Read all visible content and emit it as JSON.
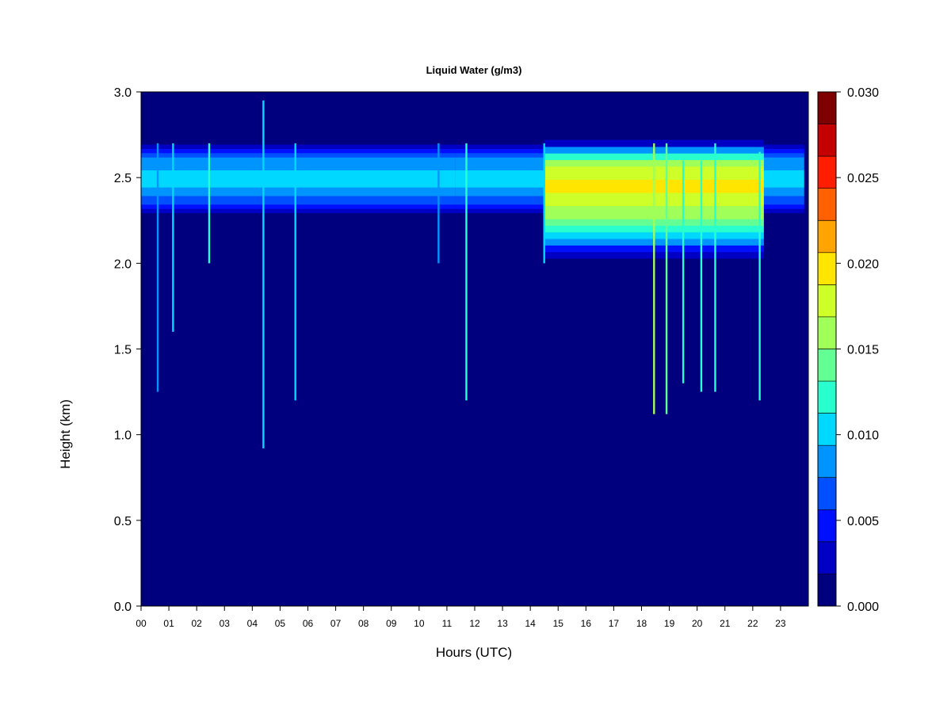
{
  "chart_data": {
    "type": "heatmap",
    "title": "Liquid Water (g/m3)",
    "xlabel": "Hours (UTC)",
    "ylabel": "Height (km)",
    "xlim": [
      0,
      24
    ],
    "ylim": [
      0.0,
      3.0
    ],
    "x_ticks": [
      "00",
      "01",
      "02",
      "03",
      "04",
      "05",
      "06",
      "07",
      "08",
      "09",
      "10",
      "11",
      "12",
      "13",
      "14",
      "15",
      "16",
      "17",
      "18",
      "19",
      "20",
      "21",
      "22",
      "23"
    ],
    "y_ticks": [
      "0.0",
      "0.5",
      "1.0",
      "1.5",
      "2.0",
      "2.5",
      "3.0"
    ],
    "grid": false,
    "colorbar": {
      "placement": "right",
      "range": [
        0.0,
        0.03
      ],
      "levels": 15,
      "tick_labels": [
        "0.000",
        "0.005",
        "0.010",
        "0.015",
        "0.020",
        "0.025",
        "0.030"
      ],
      "colors": [
        "#00007F",
        "#0000C4",
        "#0010FF",
        "#0050FF",
        "#0094FF",
        "#00D8FF",
        "#29FFCE",
        "#63FF94",
        "#A0FF58",
        "#CEFF29",
        "#FFE500",
        "#FFA400",
        "#FF6100",
        "#FF1D00",
        "#C40000",
        "#7F0000"
      ]
    },
    "background_value": 0.0,
    "cloud_layers": [
      {
        "label": "upper layer, continuous segment A",
        "hours": [
          0.0,
          11.3
        ],
        "base_km": 2.27,
        "top_km": 2.72,
        "peak_km": 2.5,
        "peak_value": 0.01
      },
      {
        "label": "upper layer, continuous segment B",
        "hours": [
          11.3,
          23.85
        ],
        "base_km": 2.27,
        "top_km": 2.72,
        "peak_km": 2.5,
        "peak_value": 0.01
      },
      {
        "label": "upper layer, thick core",
        "hours": [
          14.5,
          22.4
        ],
        "base_km": 2.03,
        "top_km": 2.72,
        "peak_km": 2.47,
        "peak_value": 0.019
      }
    ],
    "streaks": [
      {
        "hour": 0.6,
        "bottom_km": 1.25,
        "top_km": 2.7,
        "value": 0.008
      },
      {
        "hour": 1.15,
        "bottom_km": 1.6,
        "top_km": 2.7,
        "value": 0.011
      },
      {
        "hour": 2.45,
        "bottom_km": 2.0,
        "top_km": 2.7,
        "value": 0.012
      },
      {
        "hour": 4.4,
        "bottom_km": 0.92,
        "top_km": 2.95,
        "value": 0.011
      },
      {
        "hour": 5.55,
        "bottom_km": 1.2,
        "top_km": 2.7,
        "value": 0.01
      },
      {
        "hour": 10.7,
        "bottom_km": 2.0,
        "top_km": 2.7,
        "value": 0.009
      },
      {
        "hour": 11.7,
        "bottom_km": 1.2,
        "top_km": 2.7,
        "value": 0.013
      },
      {
        "hour": 14.5,
        "bottom_km": 2.0,
        "top_km": 2.7,
        "value": 0.01
      },
      {
        "hour": 18.45,
        "bottom_km": 1.12,
        "top_km": 2.7,
        "value": 0.016
      },
      {
        "hour": 18.9,
        "bottom_km": 1.12,
        "top_km": 2.7,
        "value": 0.014
      },
      {
        "hour": 19.5,
        "bottom_km": 1.3,
        "top_km": 2.6,
        "value": 0.013
      },
      {
        "hour": 20.15,
        "bottom_km": 1.25,
        "top_km": 2.6,
        "value": 0.013
      },
      {
        "hour": 20.65,
        "bottom_km": 1.25,
        "top_km": 2.7,
        "value": 0.013
      },
      {
        "hour": 22.25,
        "bottom_km": 1.2,
        "top_km": 2.65,
        "value": 0.013
      }
    ]
  }
}
